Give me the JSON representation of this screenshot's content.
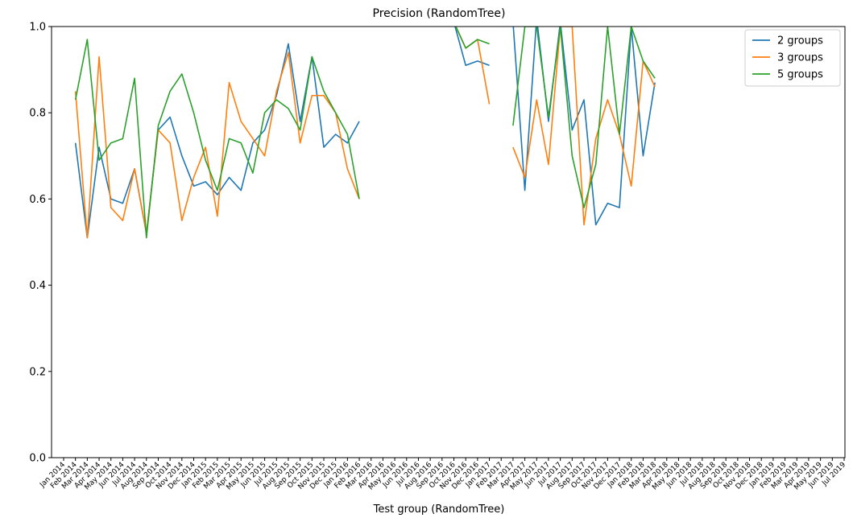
{
  "chart_data": {
    "type": "line",
    "title": "Precision (RandomTree)",
    "xlabel": "Test group (RandomTree)",
    "ylabel": "",
    "ylim": [
      0,
      1.0
    ],
    "yticks": [
      "0.0",
      "0.2",
      "0.4",
      "0.6",
      "0.8",
      "1.0"
    ],
    "ytick_values": [
      0,
      0.2,
      0.4,
      0.6,
      0.8,
      1.0
    ],
    "grid": false,
    "legend_position": "top-right",
    "categories": [
      "Jan 2014",
      "Feb 2014",
      "Mar 2014",
      "Apr 2014",
      "May 2014",
      "Jun 2014",
      "Jul 2014",
      "Aug 2014",
      "Sep 2014",
      "Oct 2014",
      "Nov 2014",
      "Dec 2014",
      "Jan 2015",
      "Feb 2015",
      "Mar 2015",
      "Apr 2015",
      "May 2015",
      "Jun 2015",
      "Jul 2015",
      "Aug 2015",
      "Sep 2015",
      "Oct 2015",
      "Nov 2015",
      "Dec 2015",
      "Jan 2016",
      "Feb 2016",
      "Mar 2016",
      "Apr 2016",
      "May 2016",
      "Jun 2016",
      "Jul 2016",
      "Aug 2016",
      "Sep 2016",
      "Oct 2016",
      "Nov 2016",
      "Dec 2016",
      "Jan 2017",
      "Feb 2017",
      "Mar 2017",
      "Apr 2017",
      "May 2017",
      "Jun 2017",
      "Jul 2017",
      "Aug 2017",
      "Sep 2017",
      "Oct 2017",
      "Nov 2017",
      "Dec 2017",
      "Jan 2018",
      "Feb 2018",
      "Mar 2018",
      "Apr 2018",
      "May 2018",
      "Jun 2018",
      "Jul 2018",
      "Aug 2018",
      "Sep 2018",
      "Oct 2018",
      "Nov 2018",
      "Dec 2018",
      "Jan 2019",
      "Feb 2019",
      "Mar 2019",
      "Apr 2019",
      "May 2019",
      "Jun 2019",
      "Jul 2019"
    ],
    "series": [
      {
        "name": "2 groups",
        "color": "#1f77b4",
        "values": [
          null,
          0.73,
          0.51,
          0.72,
          0.6,
          0.59,
          0.67,
          0.52,
          0.76,
          0.79,
          0.7,
          0.63,
          0.64,
          0.61,
          0.65,
          0.62,
          0.73,
          0.76,
          0.84,
          0.96,
          0.78,
          0.93,
          0.72,
          0.75,
          0.73,
          0.78,
          null,
          null,
          null,
          null,
          null,
          null,
          null,
          1.01,
          0.91,
          0.92,
          0.91,
          null,
          1.01,
          0.62,
          1.02,
          0.78,
          1.01,
          0.76,
          0.83,
          0.54,
          0.59,
          0.58,
          1.0,
          0.7,
          0.87,
          null,
          null,
          null,
          null,
          null,
          null,
          null,
          null,
          null,
          null,
          null,
          null,
          null,
          null,
          null,
          null
        ]
      },
      {
        "name": "3 groups",
        "color": "#ff7f0e",
        "values": [
          null,
          0.85,
          0.51,
          0.93,
          0.58,
          0.55,
          0.67,
          0.52,
          0.76,
          0.73,
          0.55,
          0.65,
          0.72,
          0.56,
          0.87,
          0.78,
          0.74,
          0.7,
          0.85,
          0.94,
          0.73,
          0.84,
          0.84,
          0.8,
          0.67,
          0.6,
          null,
          null,
          null,
          null,
          null,
          null,
          null,
          1.01,
          0.95,
          0.97,
          0.82,
          null,
          0.72,
          0.65,
          0.83,
          0.68,
          1.0,
          1.0,
          0.54,
          0.74,
          0.83,
          0.75,
          0.63,
          0.92,
          0.86,
          null,
          null,
          null,
          null,
          null,
          null,
          null,
          null,
          null,
          null,
          null,
          null,
          null,
          null,
          null,
          null
        ]
      },
      {
        "name": "5 groups",
        "color": "#2ca02c",
        "values": [
          null,
          0.83,
          0.97,
          0.69,
          0.73,
          0.74,
          0.88,
          0.51,
          0.77,
          0.85,
          0.89,
          0.8,
          0.69,
          0.62,
          0.74,
          0.73,
          0.66,
          0.8,
          0.83,
          0.81,
          0.76,
          0.93,
          0.85,
          0.8,
          0.75,
          0.6,
          null,
          null,
          null,
          null,
          null,
          null,
          null,
          1.01,
          0.95,
          0.97,
          0.96,
          null,
          0.77,
          1.0,
          1.0,
          0.79,
          1.0,
          0.7,
          0.58,
          0.68,
          1.0,
          0.75,
          1.0,
          0.92,
          0.88,
          null,
          null,
          null,
          null,
          null,
          null,
          null,
          null,
          null,
          null,
          null,
          null,
          null,
          null,
          null,
          null
        ]
      }
    ]
  }
}
